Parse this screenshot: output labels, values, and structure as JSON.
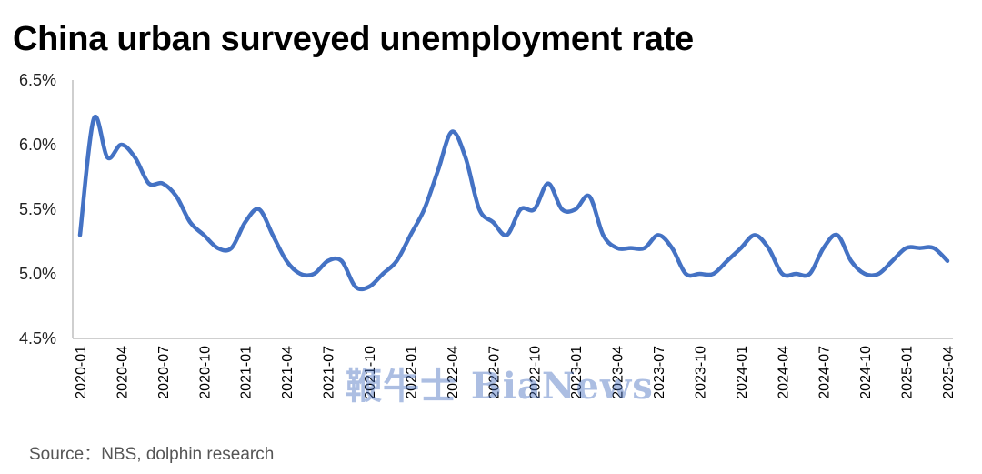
{
  "title": "China urban surveyed unemployment rate",
  "source": "Source：NBS, dolphin research",
  "watermark_text": "鞭牛士 BiaNews",
  "colors": {
    "line": "#4472C4",
    "axis": "#bfbfbf"
  },
  "chart_data": {
    "type": "line",
    "title": "China urban surveyed unemployment rate",
    "xlabel": "",
    "ylabel": "",
    "ylim": [
      4.5,
      6.5
    ],
    "y_ticks": [
      "4.5%",
      "5.0%",
      "5.5%",
      "6.0%",
      "6.5%"
    ],
    "y_tick_values": [
      4.5,
      5.0,
      5.5,
      6.0,
      6.5
    ],
    "x_tick_labels": [
      "2020-01",
      "2020-04",
      "2020-07",
      "2020-10",
      "2021-01",
      "2021-04",
      "2021-07",
      "2021-10",
      "2022-01",
      "2022-04",
      "2022-07",
      "2022-10",
      "2023-01",
      "2023-04",
      "2023-07",
      "2023-10",
      "2024-01",
      "2024-04",
      "2024-07",
      "2024-10",
      "2025-01",
      "2025-04"
    ],
    "grid": false,
    "series": [
      {
        "values": [
          5.3,
          6.2,
          5.9,
          6.0,
          5.9,
          5.7,
          5.7,
          5.6,
          5.4,
          5.3,
          5.2,
          5.2,
          5.4,
          5.5,
          5.3,
          5.1,
          5.0,
          5.0,
          5.1,
          5.1,
          4.9,
          4.9,
          5.0,
          5.1,
          5.3,
          5.5,
          5.8,
          6.1,
          5.9,
          5.5,
          5.4,
          5.3,
          5.5,
          5.5,
          5.7,
          5.5,
          5.5,
          5.6,
          5.3,
          5.2,
          5.2,
          5.2,
          5.3,
          5.2,
          5.0,
          5.0,
          5.0,
          5.1,
          5.2,
          5.3,
          5.2,
          5.0,
          5.0,
          5.0,
          5.2,
          5.3,
          5.1,
          5.0,
          5.0,
          5.1,
          5.2,
          5.2,
          5.2,
          5.1
        ]
      }
    ]
  }
}
